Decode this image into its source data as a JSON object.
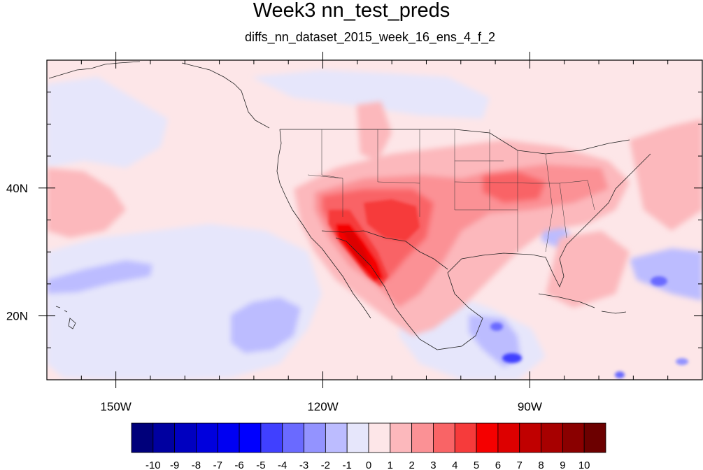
{
  "title": "Week3 nn_test_preds",
  "subtitle": "diffs_nn_dataset_2015_week_16_ens_4_f_2",
  "map": {
    "lon_range": [
      -160,
      -65
    ],
    "lat_range": [
      10,
      60
    ],
    "x_ticks": [
      {
        "value": -150,
        "label": "150W"
      },
      {
        "value": -120,
        "label": "120W"
      },
      {
        "value": -90,
        "label": "90W"
      }
    ],
    "y_ticks": [
      {
        "value": 40,
        "label": "40N"
      },
      {
        "value": 20,
        "label": "20N"
      }
    ],
    "background_color": "#fde6e8"
  },
  "colorbar": {
    "levels": [
      "-10",
      "-9",
      "-8",
      "-7",
      "-6",
      "-5",
      "-4",
      "-3",
      "-2",
      "-1",
      "0",
      "1",
      "2",
      "3",
      "4",
      "5",
      "6",
      "7",
      "8",
      "9",
      "10"
    ],
    "colors": [
      "#00007a",
      "#0000a0",
      "#0000c0",
      "#0000dd",
      "#0000f2",
      "#0000ff",
      "#4040ff",
      "#6a6aff",
      "#9393ff",
      "#bcbcff",
      "#e6e6fb",
      "#fde6e8",
      "#fcb8bc",
      "#fb9195",
      "#f96466",
      "#f63b3b",
      "#f50000",
      "#dd0000",
      "#c00000",
      "#a70000",
      "#8a0000",
      "#6c0000"
    ]
  }
}
